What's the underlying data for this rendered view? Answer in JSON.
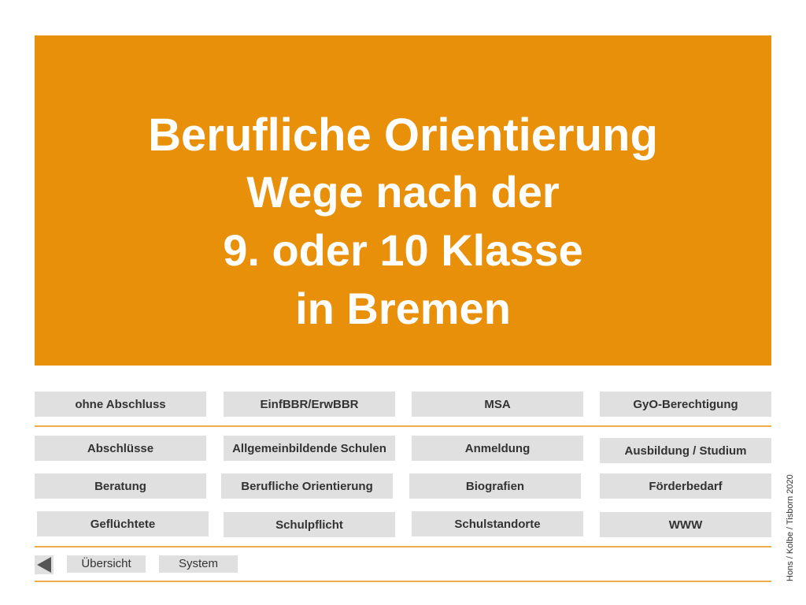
{
  "banner": {
    "title": "Berufliche Orientierung",
    "subtitle_lines": [
      "Wege nach der",
      "9. oder 10 Klasse",
      "in Bremen"
    ]
  },
  "top_row": [
    "ohne Abschluss",
    "EinfBBR/ErwBBR",
    "MSA",
    "GyO-Berechtigung"
  ],
  "grid": [
    [
      "Abschlüsse",
      "Allgemeinbildende Schulen",
      "Anmeldung",
      "Ausbildung / Studium"
    ],
    [
      "Beratung",
      "Berufliche Orientierung",
      "Biografien",
      "Förderbedarf"
    ],
    [
      "Geflüchtete",
      "Schulpflicht",
      "Schulstandorte",
      "WWW"
    ]
  ],
  "nav": {
    "overview": "Übersicht",
    "system": "System"
  },
  "credit": "Hons / Kolbe / Tisborn 2020",
  "colors": {
    "accent": "#e8900a",
    "button_bg": "#e0e0e0",
    "rule": "#f0ae4a"
  }
}
